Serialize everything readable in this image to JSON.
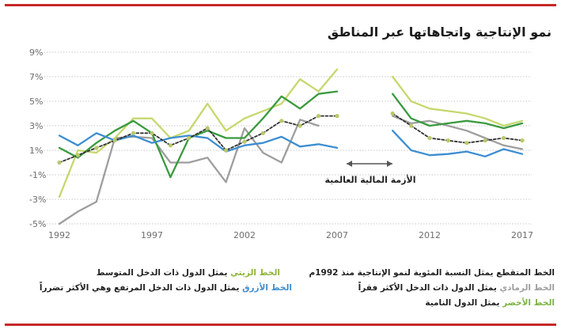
{
  "title": "نمو الإنتاجية واتجاهاتها عبر المناطق",
  "chart_data": {
    "type": "line",
    "title": "نمو الإنتاجية واتجاهاتها عبر المناطق",
    "ylim": [
      -5,
      9
    ],
    "yticks": [
      "9%",
      "7%",
      "5%",
      "3%",
      "1%",
      "-1%",
      "-3%",
      "-5%"
    ],
    "xticks": [
      "1992",
      "1997",
      "2002",
      "2007",
      "2012",
      "2017"
    ],
    "grid": "horizontal-dotted",
    "gap_annotation": "الأزمة المالية العالمية",
    "series": [
      {
        "key": "low_income",
        "color": "#9e9e9e",
        "x": [
          1992,
          1993,
          1994,
          1995,
          1996,
          1997,
          1998,
          1999,
          2000,
          2001,
          2002,
          2003,
          2004,
          2005,
          2006,
          2010,
          2011,
          2012,
          2013,
          2014,
          2015,
          2016,
          2017
        ],
        "y": [
          -5.0,
          -4.0,
          -3.2,
          2.0,
          2.1,
          2.0,
          0.0,
          0.0,
          0.4,
          -1.6,
          2.8,
          0.8,
          0.0,
          3.5,
          3.0,
          3.8,
          3.2,
          3.4,
          3.0,
          2.6,
          2.0,
          1.4,
          1.1
        ]
      },
      {
        "key": "upper_middle",
        "color": "#c5d86d",
        "x": [
          1992,
          1993,
          1994,
          1995,
          1996,
          1997,
          1998,
          1999,
          2000,
          2001,
          2002,
          2003,
          2004,
          2005,
          2006,
          2007,
          2010,
          2011,
          2012,
          2013,
          2014,
          2015,
          2016,
          2017
        ],
        "y": [
          -2.8,
          1.0,
          0.8,
          2.0,
          3.6,
          3.6,
          2.0,
          2.6,
          4.8,
          2.6,
          3.6,
          4.2,
          4.8,
          6.8,
          5.8,
          7.6,
          7.0,
          5.0,
          4.4,
          4.2,
          4.0,
          3.6,
          3.0,
          3.4
        ]
      },
      {
        "key": "developing",
        "color": "#3a9a3f",
        "x": [
          1992,
          1993,
          1994,
          1995,
          1996,
          1997,
          1998,
          1999,
          2000,
          2001,
          2002,
          2003,
          2004,
          2005,
          2006,
          2007,
          2010,
          2011,
          2012,
          2013,
          2014,
          2015,
          2016,
          2017
        ],
        "y": [
          1.2,
          0.4,
          1.6,
          2.6,
          3.4,
          2.4,
          -1.2,
          2.0,
          2.6,
          2.0,
          2.0,
          3.6,
          5.4,
          4.4,
          5.6,
          5.8,
          5.6,
          3.6,
          3.0,
          3.2,
          3.4,
          3.2,
          2.8,
          3.2
        ]
      },
      {
        "key": "high_income",
        "color": "#3d8ed0",
        "x": [
          1992,
          1993,
          1994,
          1995,
          1996,
          1997,
          1998,
          1999,
          2000,
          2001,
          2002,
          2003,
          2004,
          2005,
          2006,
          2007,
          2010,
          2011,
          2012,
          2013,
          2014,
          2015,
          2016,
          2017
        ],
        "y": [
          2.2,
          1.4,
          2.4,
          1.8,
          2.2,
          1.6,
          2.0,
          2.2,
          2.0,
          0.9,
          1.4,
          1.6,
          2.1,
          1.3,
          1.5,
          1.2,
          2.6,
          1.0,
          0.6,
          0.7,
          0.9,
          0.5,
          1.1,
          0.7
        ]
      },
      {
        "key": "average",
        "color": "#333333",
        "dashed": true,
        "x": [
          1992,
          1993,
          1994,
          1995,
          1996,
          1997,
          1998,
          1999,
          2000,
          2001,
          2002,
          2003,
          2004,
          2005,
          2006,
          2007,
          2010,
          2011,
          2012,
          2013,
          2014,
          2015,
          2016,
          2017
        ],
        "y": [
          0.0,
          0.6,
          1.2,
          1.8,
          2.4,
          2.4,
          1.4,
          2.0,
          2.8,
          1.0,
          1.7,
          2.4,
          3.4,
          3.0,
          3.8,
          3.8,
          4.0,
          3.0,
          2.0,
          1.8,
          1.6,
          1.8,
          2.0,
          1.8
        ]
      }
    ]
  },
  "legend": {
    "dashed": "الخط المتقطع يمثل النسبة المئوية لنمو الإنتاجية منذ 1992م",
    "gray_key": "الخط الرمادي",
    "gray_text": " يمثل الدول ذات الدخل الأكثر فقراً",
    "green_key": "الخط الأخضر",
    "green_text": " يمثل الدول النامية",
    "olive_key": "الخط الزيتي",
    "olive_text": " يمثل الدول ذات الدخل المتوسط",
    "blue_key": "الخط الأزرق",
    "blue_text": " يمثل الدول ذات الدخل المرتفع وهي الأكثر تضرراً"
  },
  "colors": {
    "rule": "#c62828",
    "gray": "#9e9e9e",
    "lightgreen": "#c5d86d",
    "green": "#3a9a3f",
    "blue": "#3d8ed0",
    "olive_key": "#8fb43a"
  }
}
